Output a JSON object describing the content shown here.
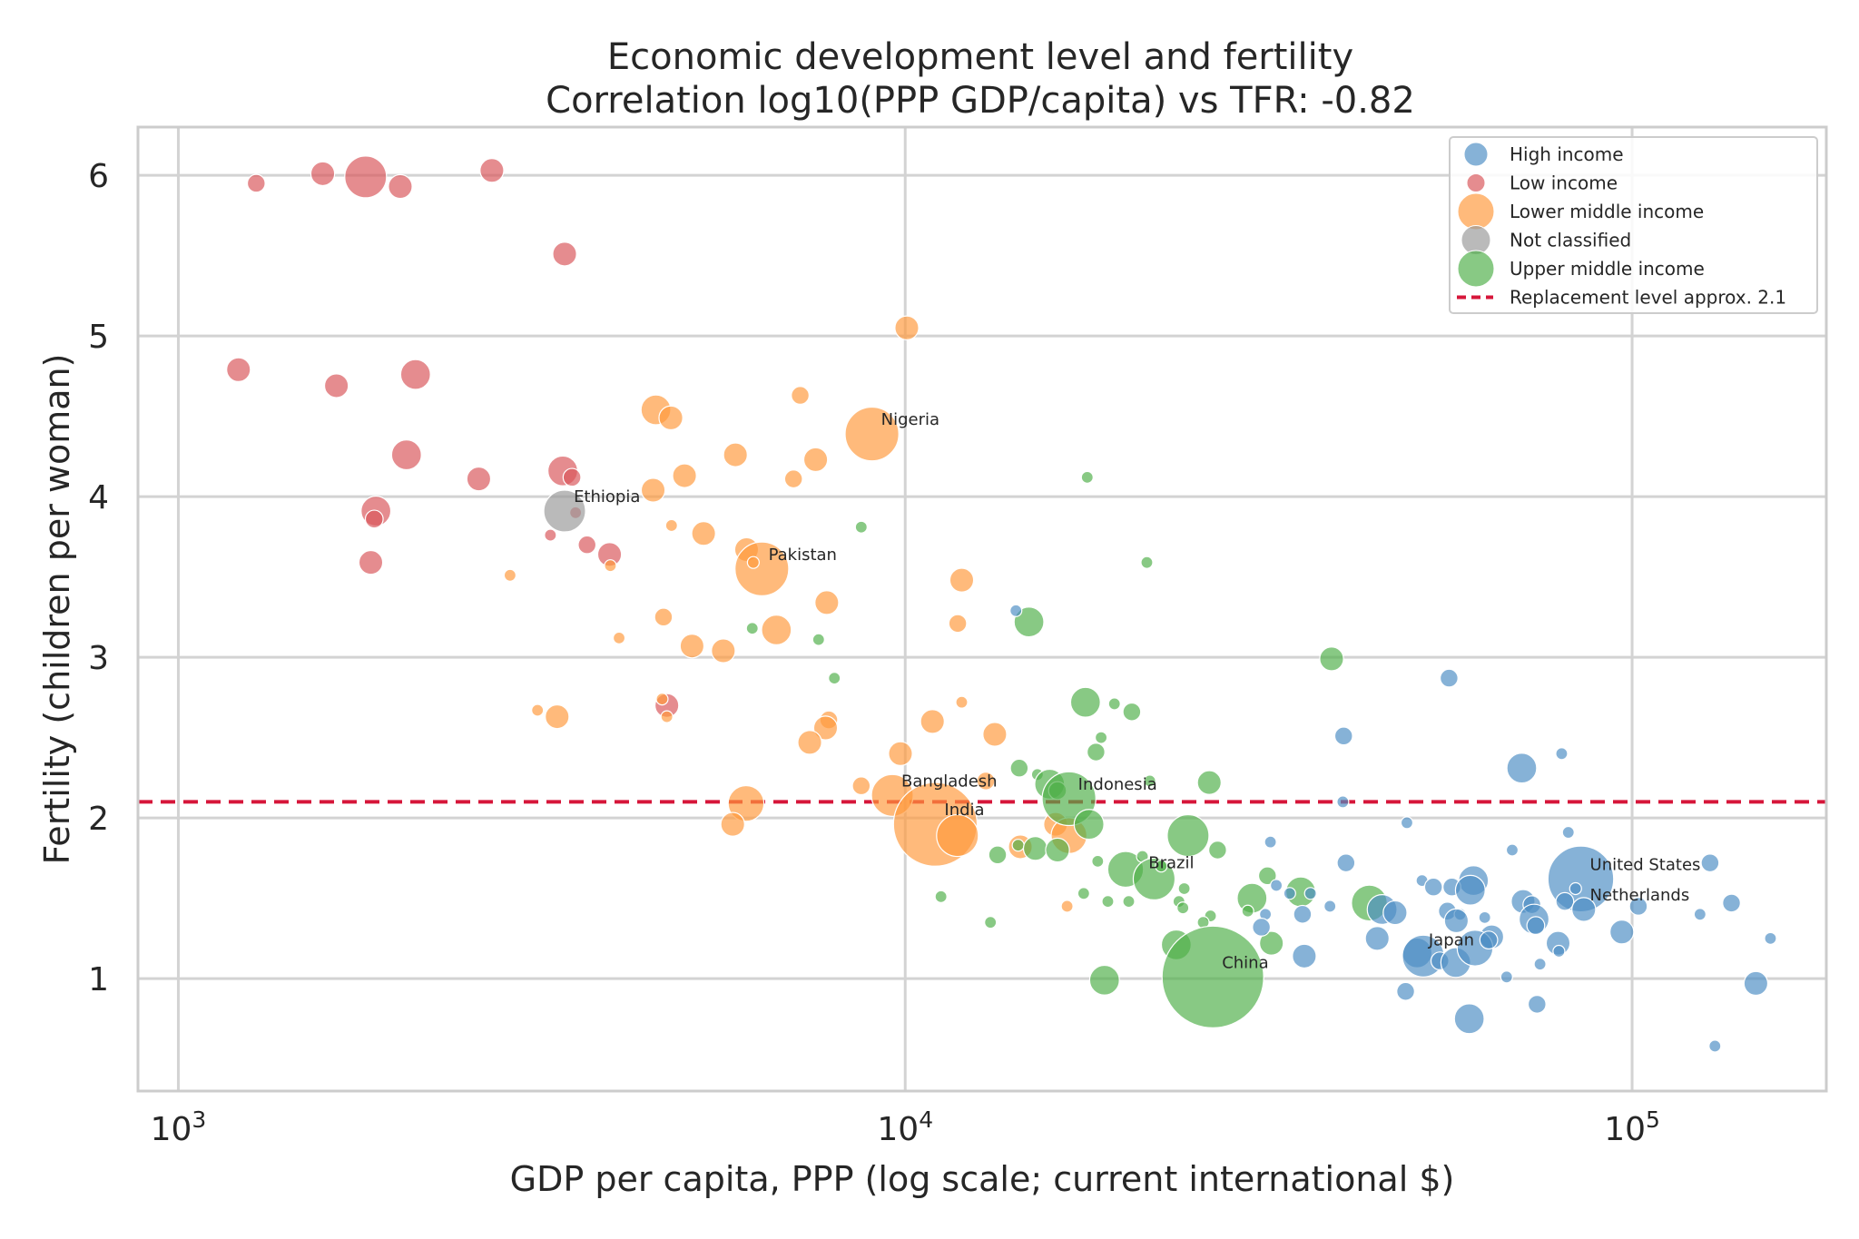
{
  "chart_data": {
    "type": "scatter",
    "title": "Economic development level and fertility",
    "subtitle": "Correlation log10(PPP GDP/capita) vs TFR: -0.82",
    "xlabel": "GDP per capita, PPP (log scale; current international $)",
    "ylabel": "Fertility (children per woman)",
    "xscale": "log",
    "xlim": [
      880,
      185000
    ],
    "ylim": [
      0.3,
      6.3
    ],
    "xticks": [
      1000,
      10000,
      100000
    ],
    "xtick_labels": [
      {
        "base": "10",
        "exp": "3"
      },
      {
        "base": "10",
        "exp": "4"
      },
      {
        "base": "10",
        "exp": "5"
      }
    ],
    "yticks": [
      1,
      2,
      3,
      4,
      5,
      6
    ],
    "ytick_labels": [
      "1",
      "2",
      "3",
      "4",
      "5",
      "6"
    ],
    "grid": true,
    "legend_position": "top-right",
    "reference_line": {
      "y": 2.1,
      "label": "Replacement level approx. 2.1",
      "color": "#d6163a"
    },
    "groups": [
      {
        "name": "High income",
        "color": "#4c8ec4"
      },
      {
        "name": "Low income",
        "color": "#d9555a"
      },
      {
        "name": "Lower middle income",
        "color": "#ff9a3c"
      },
      {
        "name": "Not classified",
        "color": "#9a9a9a"
      },
      {
        "name": "Upper middle income",
        "color": "#4fb04a"
      }
    ],
    "annotations": [
      {
        "text": "Nigeria",
        "x": 9000,
        "y": 4.39
      },
      {
        "text": "Ethiopia",
        "x": 3400,
        "y": 3.91
      },
      {
        "text": "Pakistan",
        "x": 6300,
        "y": 3.55
      },
      {
        "text": "Bangladesh",
        "x": 9600,
        "y": 2.14
      },
      {
        "text": "Indonesia",
        "x": 16800,
        "y": 2.12
      },
      {
        "text": "India",
        "x": 11000,
        "y": 1.96
      },
      {
        "text": "Brazil",
        "x": 21000,
        "y": 1.63
      },
      {
        "text": "United States",
        "x": 85000,
        "y": 1.62
      },
      {
        "text": "Netherlands",
        "x": 85000,
        "y": 1.43
      },
      {
        "text": "Japan",
        "x": 51000,
        "y": 1.15
      },
      {
        "text": "China",
        "x": 26500,
        "y": 1.01
      }
    ],
    "series": [
      {
        "name": "Low income",
        "points": [
          [
            1280,
            5.95,
            2
          ],
          [
            1580,
            6.01,
            3
          ],
          [
            1810,
            5.99,
            6
          ],
          [
            2020,
            5.93,
            3
          ],
          [
            2700,
            6.03,
            3
          ],
          [
            3400,
            5.51,
            3
          ],
          [
            1210,
            4.79,
            3
          ],
          [
            1650,
            4.69,
            3
          ],
          [
            2120,
            4.76,
            4
          ],
          [
            2060,
            4.26,
            4
          ],
          [
            2590,
            4.11,
            3
          ],
          [
            3380,
            4.16,
            4
          ],
          [
            3480,
            4.12,
            2
          ],
          [
            1870,
            3.91,
            4
          ],
          [
            1860,
            3.86,
            2
          ],
          [
            3520,
            3.9,
            1
          ],
          [
            3650,
            3.7,
            2
          ],
          [
            3920,
            3.64,
            3
          ],
          [
            3250,
            3.76,
            1
          ],
          [
            1840,
            3.59,
            3
          ],
          [
            4700,
            2.7,
            3
          ]
        ]
      },
      {
        "name": "Lower middle income",
        "points": [
          [
            10050,
            5.05,
            3
          ],
          [
            4540,
            4.54,
            4
          ],
          [
            4760,
            4.49,
            3
          ],
          [
            7170,
            4.63,
            2
          ],
          [
            9000,
            4.39,
            8
          ],
          [
            5840,
            4.26,
            3
          ],
          [
            7530,
            4.23,
            3
          ],
          [
            4500,
            4.04,
            3
          ],
          [
            4970,
            4.13,
            3
          ],
          [
            7020,
            4.11,
            2
          ],
          [
            4770,
            3.82,
            1
          ],
          [
            5280,
            3.77,
            3
          ],
          [
            6050,
            3.67,
            3
          ],
          [
            6350,
            3.55,
            8
          ],
          [
            6180,
            3.59,
            1
          ],
          [
            11960,
            3.48,
            3
          ],
          [
            3930,
            3.57,
            1
          ],
          [
            2860,
            3.51,
            1
          ],
          [
            7800,
            3.34,
            3
          ],
          [
            4650,
            3.25,
            2
          ],
          [
            11810,
            3.21,
            2
          ],
          [
            6650,
            3.17,
            4
          ],
          [
            4040,
            3.12,
            1
          ],
          [
            5090,
            3.07,
            3
          ],
          [
            5620,
            3.04,
            3
          ],
          [
            3120,
            2.67,
            1
          ],
          [
            3320,
            2.63,
            3
          ],
          [
            4630,
            2.74,
            1
          ],
          [
            4700,
            2.63,
            1
          ],
          [
            7850,
            2.61,
            2
          ],
          [
            7770,
            2.56,
            3
          ],
          [
            10900,
            2.6,
            3
          ],
          [
            11960,
            2.72,
            1
          ],
          [
            13280,
            2.52,
            3
          ],
          [
            7390,
            2.47,
            3
          ],
          [
            9850,
            2.4,
            3
          ],
          [
            8700,
            2.2,
            2
          ],
          [
            12910,
            2.23,
            2
          ],
          [
            9600,
            2.14,
            6
          ],
          [
            6040,
            2.09,
            5
          ],
          [
            5790,
            1.96,
            3
          ],
          [
            11000,
            1.96,
            13
          ],
          [
            11800,
            1.89,
            6
          ],
          [
            16100,
            1.96,
            3
          ],
          [
            16800,
            1.89,
            5
          ],
          [
            14400,
            1.82,
            3
          ],
          [
            16700,
            1.45,
            1
          ]
        ]
      },
      {
        "name": "Not classified",
        "points": [
          [
            3400,
            3.91,
            6
          ]
        ]
      },
      {
        "name": "Upper middle income",
        "points": [
          [
            17800,
            4.12,
            1
          ],
          [
            8700,
            3.81,
            1
          ],
          [
            21500,
            3.59,
            1
          ],
          [
            14800,
            3.22,
            4
          ],
          [
            6160,
            3.18,
            1
          ],
          [
            7600,
            3.11,
            1
          ],
          [
            7990,
            2.87,
            1
          ],
          [
            38600,
            2.99,
            3
          ],
          [
            17700,
            2.72,
            4
          ],
          [
            19400,
            2.71,
            1
          ],
          [
            20500,
            2.66,
            2
          ],
          [
            18600,
            2.5,
            1
          ],
          [
            18300,
            2.41,
            2
          ],
          [
            14350,
            2.31,
            2
          ],
          [
            15200,
            2.27,
            1
          ],
          [
            15800,
            2.21,
            4
          ],
          [
            16200,
            2.17,
            2
          ],
          [
            21700,
            2.23,
            1
          ],
          [
            26200,
            2.22,
            3
          ],
          [
            16800,
            2.12,
            8
          ],
          [
            17900,
            1.96,
            4
          ],
          [
            24500,
            1.89,
            6
          ],
          [
            26900,
            1.8,
            2
          ],
          [
            14300,
            1.83,
            1
          ],
          [
            15100,
            1.81,
            3
          ],
          [
            16200,
            1.8,
            3
          ],
          [
            13400,
            1.77,
            2
          ],
          [
            18400,
            1.73,
            1
          ],
          [
            20100,
            1.68,
            5
          ],
          [
            21200,
            1.76,
            1
          ],
          [
            22000,
            1.62,
            6
          ],
          [
            22500,
            1.7,
            1
          ],
          [
            24200,
            1.56,
            1
          ],
          [
            26300,
            1.39,
            1
          ],
          [
            25700,
            1.35,
            1
          ],
          [
            11200,
            1.51,
            1
          ],
          [
            13100,
            1.35,
            1
          ],
          [
            17600,
            1.53,
            1
          ],
          [
            19000,
            1.48,
            1
          ],
          [
            20300,
            1.48,
            1
          ],
          [
            23800,
            1.48,
            1
          ],
          [
            24100,
            1.44,
            1
          ],
          [
            30000,
            1.5,
            4
          ],
          [
            31500,
            1.64,
            2
          ],
          [
            35000,
            1.54,
            4
          ],
          [
            43500,
            1.47,
            5
          ],
          [
            23600,
            1.21,
            4
          ],
          [
            29600,
            1.42,
            1
          ],
          [
            31900,
            1.22,
            3
          ],
          [
            18800,
            0.99,
            4
          ],
          [
            26500,
            1.01,
            16
          ]
        ]
      },
      {
        "name": "High income",
        "points": [
          [
            14200,
            3.29,
            1
          ],
          [
            56000,
            2.87,
            2
          ],
          [
            40100,
            2.51,
            2
          ],
          [
            70500,
            2.31,
            4
          ],
          [
            80000,
            2.4,
            1
          ],
          [
            40000,
            2.1,
            1
          ],
          [
            49000,
            1.97,
            1
          ],
          [
            81700,
            1.91,
            1
          ],
          [
            68400,
            1.8,
            1
          ],
          [
            31800,
            1.85,
            1
          ],
          [
            40400,
            1.72,
            2
          ],
          [
            85000,
            1.62,
            10
          ],
          [
            128000,
            1.72,
            2
          ],
          [
            60500,
            1.61,
            4
          ],
          [
            51400,
            1.61,
            1
          ],
          [
            53300,
            1.57,
            2
          ],
          [
            56500,
            1.57,
            2
          ],
          [
            59900,
            1.55,
            4
          ],
          [
            83600,
            1.56,
            1
          ],
          [
            33800,
            1.53,
            1
          ],
          [
            36100,
            1.53,
            1
          ],
          [
            32400,
            1.58,
            1
          ],
          [
            70800,
            1.48,
            3
          ],
          [
            72800,
            1.46,
            2
          ],
          [
            45300,
            1.43,
            4
          ],
          [
            47200,
            1.41,
            3
          ],
          [
            55700,
            1.42,
            2
          ],
          [
            58000,
            1.4,
            1
          ],
          [
            80800,
            1.48,
            2
          ],
          [
            85800,
            1.43,
            3
          ],
          [
            102000,
            1.45,
            2
          ],
          [
            137000,
            1.47,
            2
          ],
          [
            124000,
            1.4,
            1
          ],
          [
            73300,
            1.37,
            4
          ],
          [
            31300,
            1.4,
            1
          ],
          [
            35200,
            1.4,
            2
          ],
          [
            38400,
            1.45,
            1
          ],
          [
            57300,
            1.36,
            3
          ],
          [
            62700,
            1.38,
            1
          ],
          [
            73700,
            1.33,
            2
          ],
          [
            30900,
            1.32,
            2
          ],
          [
            96800,
            1.29,
            3
          ],
          [
            44600,
            1.25,
            3
          ],
          [
            64100,
            1.26,
            3
          ],
          [
            79100,
            1.22,
            3
          ],
          [
            155000,
            1.25,
            1
          ],
          [
            50600,
            1.16,
            4
          ],
          [
            51600,
            1.14,
            6
          ],
          [
            54400,
            1.11,
            2
          ],
          [
            57200,
            1.1,
            4
          ],
          [
            60800,
            1.19,
            5
          ],
          [
            63500,
            1.24,
            2
          ],
          [
            74700,
            1.09,
            1
          ],
          [
            79300,
            1.17,
            1
          ],
          [
            35400,
            1.14,
            3
          ],
          [
            48800,
            0.92,
            2
          ],
          [
            59700,
            0.75,
            4
          ],
          [
            67200,
            1.01,
            1
          ],
          [
            74000,
            0.84,
            2
          ],
          [
            148000,
            0.97,
            3
          ],
          [
            130000,
            0.58,
            1
          ]
        ]
      }
    ]
  }
}
